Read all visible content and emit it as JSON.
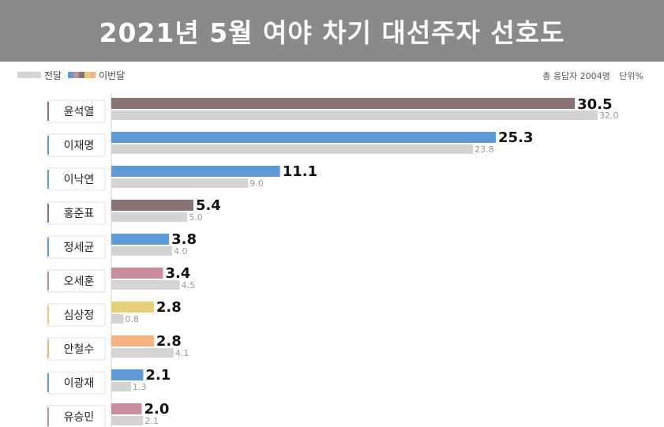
{
  "header": {
    "title": "2021년 5월 여야 차기 대선주자 선호도"
  },
  "legend": {
    "previous_label": "전달",
    "current_label": "이번달",
    "current_swatch_colors": [
      "#5e9ad8",
      "#c98e9b",
      "#8b7374",
      "#e7cf78",
      "#f6b37f"
    ]
  },
  "meta": {
    "respondents": "총 응답자 2004명",
    "unit": "단위%"
  },
  "chart_data": {
    "type": "bar",
    "orientation": "horizontal",
    "title": "2021년 5월 여야 차기 대선주자 선호도",
    "categories": [
      "윤석열",
      "이재명",
      "이낙연",
      "홍준표",
      "정세균",
      "오세훈",
      "심상정",
      "안철수",
      "이광재",
      "유승민"
    ],
    "series": [
      {
        "name": "이번달",
        "values": [
          30.5,
          25.3,
          11.1,
          5.4,
          3.8,
          3.4,
          2.8,
          2.8,
          2.1,
          2.0
        ],
        "labels": [
          "30.5",
          "25.3",
          "11.1",
          "5.4",
          "3.8",
          "3.4",
          "2.8",
          "2.8",
          "2.1",
          "2.0"
        ],
        "colors": [
          "#8b7374",
          "#5e9ad8",
          "#5e9ad8",
          "#8b7374",
          "#5e9ad8",
          "#c98e9b",
          "#e7cf78",
          "#f6b37f",
          "#5e9ad8",
          "#c98e9b"
        ]
      },
      {
        "name": "전달",
        "values": [
          32.0,
          23.8,
          9.0,
          5.0,
          4.0,
          4.5,
          0.8,
          4.1,
          1.3,
          2.1
        ],
        "labels": [
          "32.0",
          "23.8",
          "9.0",
          "5.0",
          "4.0",
          "4.5",
          "0.8",
          "4.1",
          "1.3",
          "2.1"
        ],
        "color": "#d4d4d4"
      }
    ],
    "highlight_color": "#8b7374",
    "xlim": [
      0,
      32
    ],
    "grid": false,
    "legend_position": "top-left"
  }
}
